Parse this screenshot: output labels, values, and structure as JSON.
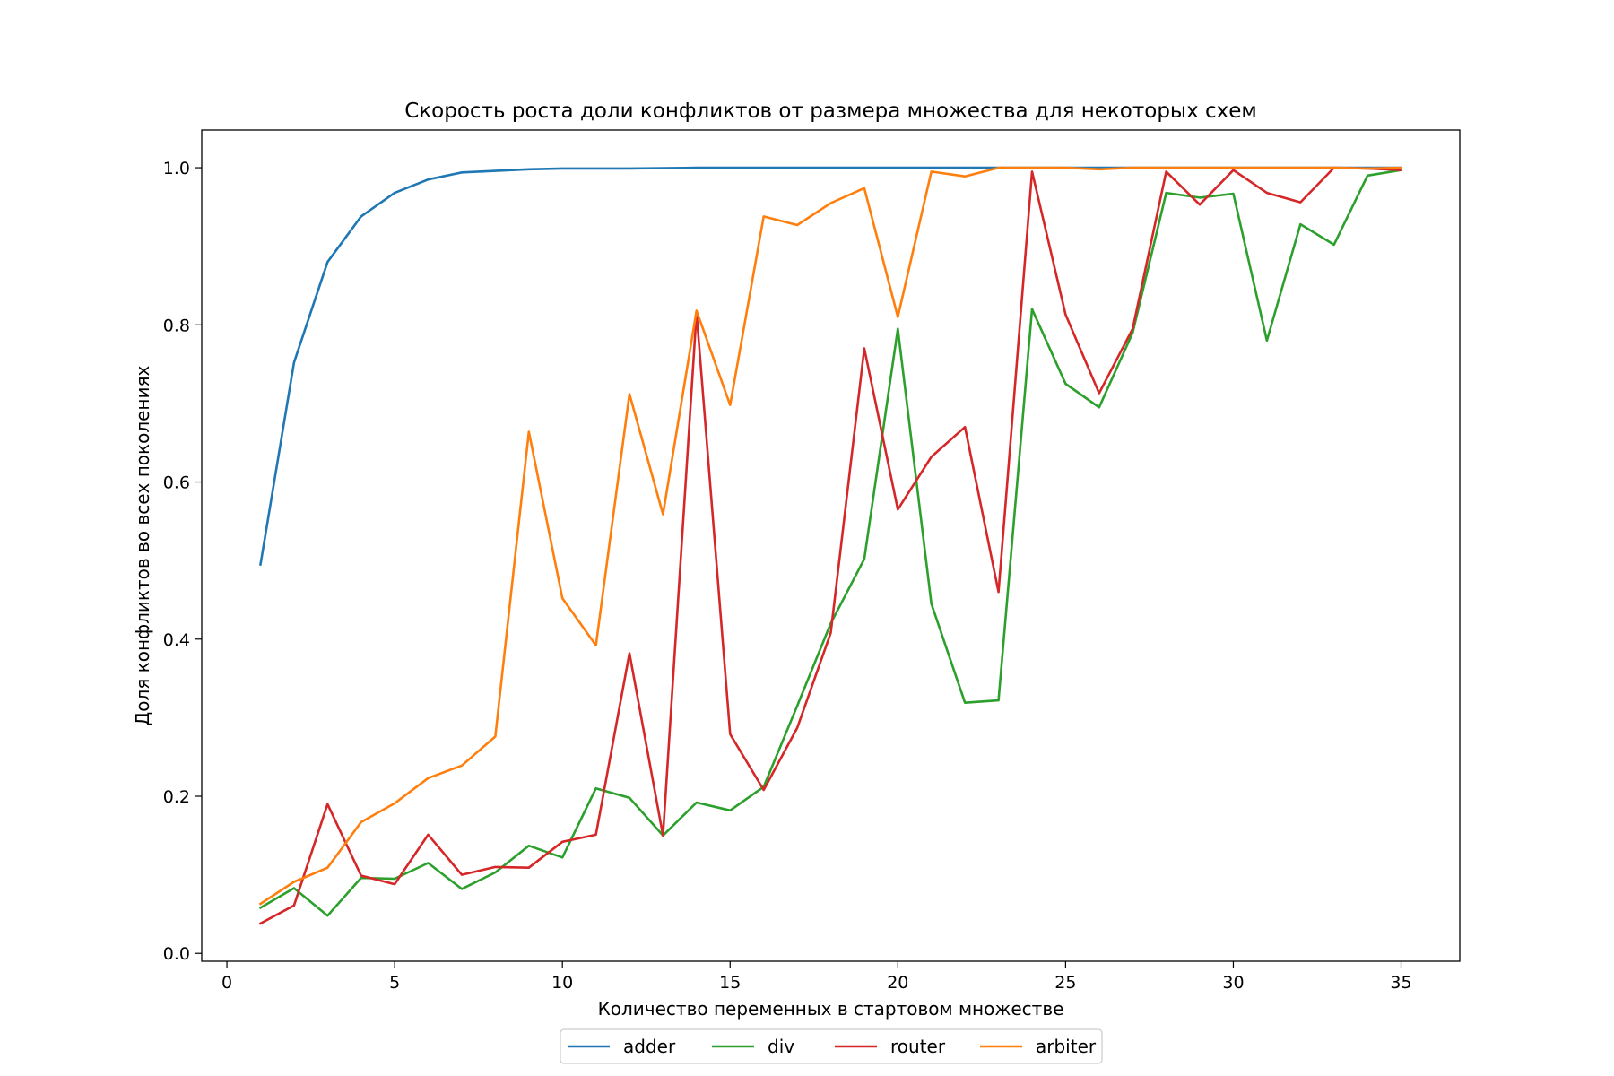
{
  "chart_data": {
    "type": "line",
    "title": "Скорость роста доли конфликтов от размера множества для некоторых схем",
    "xlabel": "Количество переменных в стартовом множестве",
    "ylabel": "Доля конфликтов во всех поколениях",
    "xlim": [
      -0.75,
      36.75
    ],
    "ylim": [
      -0.01,
      1.048
    ],
    "xticks": [
      0,
      5,
      10,
      15,
      20,
      25,
      30,
      35
    ],
    "xtick_labels": [
      "0",
      "5",
      "10",
      "15",
      "20",
      "25",
      "30",
      "35"
    ],
    "yticks": [
      0.0,
      0.2,
      0.4,
      0.6,
      0.8,
      1.0
    ],
    "ytick_labels": [
      "0.0",
      "0.2",
      "0.4",
      "0.6",
      "0.8",
      "1.0"
    ],
    "grid": false,
    "legend_position": "bottom-center",
    "x": [
      1,
      2,
      3,
      4,
      5,
      6,
      7,
      8,
      9,
      10,
      11,
      12,
      13,
      14,
      15,
      16,
      17,
      18,
      19,
      20,
      21,
      22,
      23,
      24,
      25,
      26,
      27,
      28,
      29,
      30,
      31,
      32,
      33,
      34,
      35
    ],
    "series": [
      {
        "name": "adder",
        "color": "#1f77b4",
        "values": [
          0.495,
          0.752,
          0.88,
          0.938,
          0.968,
          0.985,
          0.994,
          0.996,
          0.998,
          0.999,
          0.999,
          0.999,
          0.9995,
          1.0,
          1.0,
          1.0,
          1.0,
          1.0,
          1.0,
          1.0,
          1.0,
          1.0,
          1.0,
          1.0,
          1.0,
          1.0,
          1.0,
          1.0,
          1.0,
          1.0,
          1.0,
          1.0,
          1.0,
          1.0,
          1.0
        ]
      },
      {
        "name": "div",
        "color": "#2ca02c",
        "values": [
          0.058,
          0.083,
          0.048,
          0.096,
          0.095,
          0.115,
          0.082,
          0.103,
          0.137,
          0.122,
          0.21,
          0.198,
          0.15,
          0.192,
          0.182,
          0.212,
          0.315,
          0.42,
          0.502,
          0.795,
          0.445,
          0.319,
          0.322,
          0.82,
          0.725,
          0.695,
          0.79,
          0.968,
          0.962,
          0.967,
          0.78,
          0.928,
          0.902,
          0.99,
          0.997
        ]
      },
      {
        "name": "router",
        "color": "#d62728",
        "values": [
          0.038,
          0.061,
          0.19,
          0.099,
          0.088,
          0.151,
          0.1,
          0.11,
          0.109,
          0.142,
          0.151,
          0.382,
          0.15,
          0.815,
          0.279,
          0.208,
          0.287,
          0.408,
          0.77,
          0.565,
          0.632,
          0.67,
          0.46,
          0.995,
          0.813,
          0.713,
          0.795,
          0.995,
          0.953,
          0.997,
          0.968,
          0.956,
          1.0,
          0.999,
          0.997
        ]
      },
      {
        "name": "arbiter",
        "color": "#ff7f0e",
        "values": [
          0.063,
          0.091,
          0.109,
          0.167,
          0.191,
          0.223,
          0.239,
          0.276,
          0.664,
          0.452,
          0.392,
          0.712,
          0.559,
          0.818,
          0.698,
          0.938,
          0.927,
          0.955,
          0.974,
          0.81,
          0.995,
          0.989,
          1.0,
          1.0,
          1.0,
          0.998,
          1.0,
          1.0,
          1.0,
          1.0,
          1.0,
          1.0,
          1.0,
          0.999,
          1.0
        ]
      }
    ]
  }
}
